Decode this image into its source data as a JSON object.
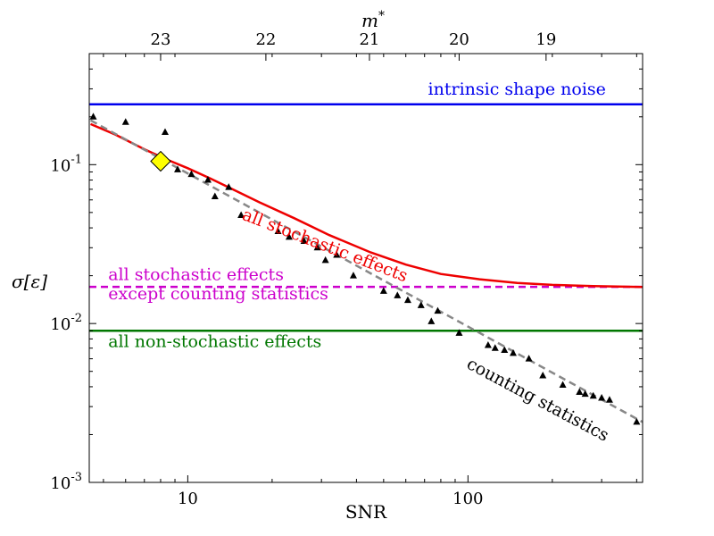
{
  "chart_data": {
    "type": "scatter",
    "xlabel": "SNR",
    "ylabel": "σ[ε]",
    "top_xlabel": "m*",
    "x_scale": "log",
    "y_scale": "log",
    "xlim": [
      4.45,
      420
    ],
    "ylim": [
      0.001,
      0.5
    ],
    "grid": false,
    "x_ticks": [
      {
        "value": 10,
        "label": "10"
      },
      {
        "value": 100,
        "label": "100"
      }
    ],
    "y_ticks": [
      {
        "value": 0.001,
        "base": "10",
        "exp": "-3"
      },
      {
        "value": 0.01,
        "base": "10",
        "exp": "-2"
      },
      {
        "value": 0.1,
        "base": "10",
        "exp": "-1"
      }
    ],
    "top_ticks": [
      {
        "snr": 8.0,
        "label": "23"
      },
      {
        "snr": 19.0,
        "label": "22"
      },
      {
        "snr": 44.5,
        "label": "21"
      },
      {
        "snr": 93.0,
        "label": "20"
      },
      {
        "snr": 190.0,
        "label": "19"
      }
    ],
    "series": [
      {
        "kind": "hline",
        "y": 0.24,
        "color": "#0000ee",
        "dash": false
      },
      {
        "kind": "hline",
        "y": 0.017,
        "color": "#cc00cc",
        "dash": true
      },
      {
        "kind": "hline",
        "y": 0.009,
        "color": "#007700",
        "dash": false
      },
      {
        "kind": "line",
        "color": "#ee0000",
        "dash": false,
        "x": [
          4.5,
          5.5,
          7,
          8.5,
          10,
          12,
          14,
          18,
          24,
          32,
          45,
          60,
          80,
          110,
          150,
          200,
          280,
          420
        ],
        "y": [
          0.18,
          0.155,
          0.125,
          0.107,
          0.095,
          0.082,
          0.072,
          0.058,
          0.046,
          0.036,
          0.028,
          0.0235,
          0.0205,
          0.019,
          0.018,
          0.0175,
          0.0172,
          0.017
        ]
      },
      {
        "kind": "line",
        "color": "#888888",
        "dash": true,
        "x": [
          4.5,
          420
        ],
        "y": [
          0.19,
          0.0024
        ]
      },
      {
        "kind": "points",
        "marker": "triangle",
        "color": "#000000",
        "x": [
          4.6,
          6.0,
          8.3,
          9.2,
          10.3,
          11.8,
          12.5,
          14.0,
          15.5,
          21.0,
          23.0,
          26.0,
          29.0,
          31.0,
          34.0,
          39.0,
          50.0,
          56.0,
          61.0,
          68.0,
          74.0,
          78.0,
          93.0,
          118.0,
          125.0,
          135.0,
          145.0,
          165.0,
          185.0,
          218.0,
          250.0,
          262.0,
          280.0,
          300.0,
          320.0,
          400.0
        ],
        "y": [
          0.2,
          0.185,
          0.16,
          0.093,
          0.087,
          0.08,
          0.063,
          0.072,
          0.048,
          0.038,
          0.035,
          0.033,
          0.03,
          0.025,
          0.027,
          0.02,
          0.016,
          0.015,
          0.014,
          0.013,
          0.0103,
          0.012,
          0.0087,
          0.0073,
          0.007,
          0.0068,
          0.0065,
          0.006,
          0.0047,
          0.0041,
          0.0037,
          0.0036,
          0.0035,
          0.0034,
          0.0033,
          0.0024
        ]
      },
      {
        "kind": "marker",
        "marker": "diamond",
        "color": "#ffff00",
        "stroke": "#000000",
        "x": [
          8.0
        ],
        "y": [
          0.105
        ]
      }
    ],
    "annotations": [
      {
        "text": "intrinsic shape noise",
        "color": "#0000ee",
        "x": 72,
        "y": 0.275,
        "rotate": 0,
        "anchor": "start"
      },
      {
        "text": "all stochastic effects",
        "color": "#ee0000",
        "x": 15.5,
        "y": 0.0455,
        "rotate": 21,
        "anchor": "middle-start"
      },
      {
        "text": "all stochastic effects",
        "color": "#cc00cc",
        "x": 5.2,
        "y": 0.0188,
        "rotate": 0,
        "anchor": "start"
      },
      {
        "text": "except counting statistics",
        "color": "#cc00cc",
        "x": 5.2,
        "y": 0.0142,
        "rotate": 0,
        "anchor": "start"
      },
      {
        "text": "all non-stochastic effects",
        "color": "#007700",
        "x": 5.2,
        "y": 0.0071,
        "rotate": 0,
        "anchor": "start"
      },
      {
        "text": "counting statistics",
        "color": "#000000",
        "x": 98,
        "y": 0.0053,
        "rotate": 28,
        "anchor": "middle-start"
      }
    ]
  }
}
